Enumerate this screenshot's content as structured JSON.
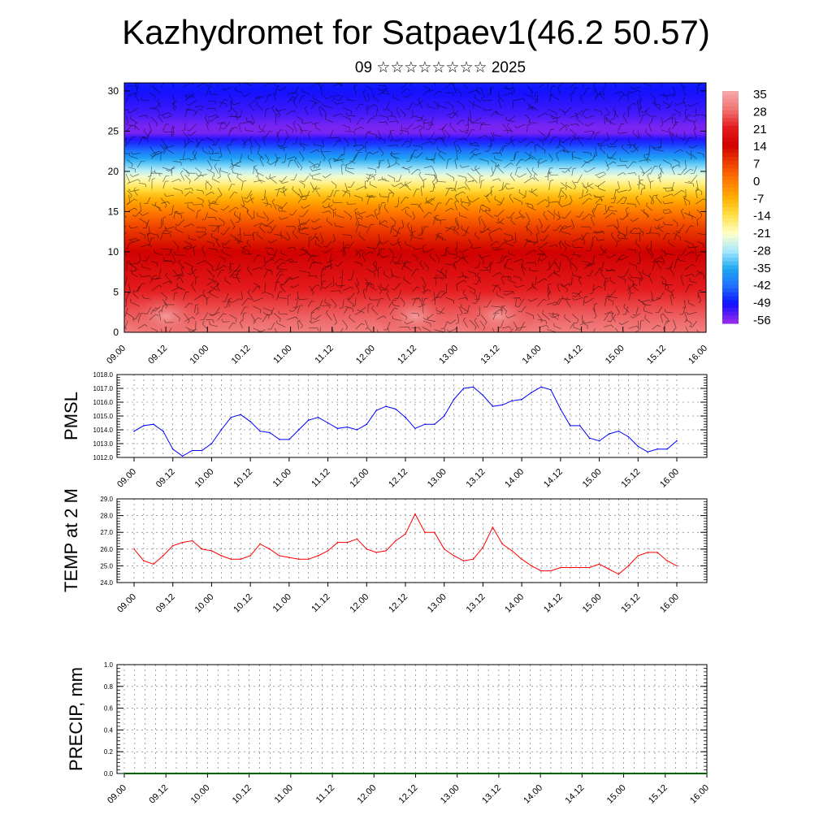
{
  "header": {
    "title": "Kazhydromet for Satpaev1(46.2 50.57)",
    "subtitle": "09 ☆☆☆☆☆☆☆☆ 2025"
  },
  "chart_data": [
    {
      "type": "heatmap",
      "name": "wind-temperature-cross-section",
      "x_ticks": [
        "09.00",
        "09.12",
        "10.00",
        "10.12",
        "11.00",
        "11.12",
        "12.00",
        "12.12",
        "13.00",
        "13.12",
        "14.00",
        "14.12",
        "15.00",
        "15.12",
        "16.00"
      ],
      "y_ticks": [
        "0",
        "5",
        "10",
        "15",
        "20",
        "25",
        "30"
      ],
      "ylim": [
        0,
        31
      ],
      "colorbar_labels": [
        "35",
        "28",
        "21",
        "14",
        "7",
        "0",
        "-7",
        "-14",
        "-21",
        "-28",
        "-35",
        "-42",
        "-49",
        "-56"
      ],
      "colorbar_colors": [
        "#f4a5a5",
        "#f07070",
        "#e41a1c",
        "#d00000",
        "#ee4000",
        "#ff7a00",
        "#ffb000",
        "#ffe24a",
        "#ffffc8",
        "#a8e8ff",
        "#1ea8f0",
        "#2070ff",
        "#1010ff",
        "#9028f0"
      ],
      "profile_by_height": {
        "height": [
          0,
          3,
          6,
          10,
          13,
          15,
          17,
          19,
          21,
          23,
          25,
          27,
          31
        ],
        "temperature": [
          30,
          25,
          20,
          14,
          7,
          0,
          -9,
          -20,
          -32,
          -44,
          -56,
          -52,
          -48
        ]
      },
      "warm_spots": [
        {
          "x": "09.12",
          "y": 2,
          "temperature": 34
        },
        {
          "x": "12.12",
          "y": 2,
          "temperature": 34
        },
        {
          "x": "13.12",
          "y": 2,
          "temperature": 34
        }
      ],
      "grid": false
    },
    {
      "type": "line",
      "ylabel": "PMSL",
      "ylim": [
        1012.0,
        1018.0
      ],
      "y_ticks": [
        "1012.0",
        "1013.0",
        "1014.0",
        "1015.0",
        "1016.0",
        "1017.0",
        "1018.0"
      ],
      "x_ticks": [
        "09.00",
        "09.12",
        "10.00",
        "10.12",
        "11.00",
        "11.12",
        "12.00",
        "12.12",
        "13.00",
        "13.12",
        "14.00",
        "14.12",
        "15.00",
        "15.12",
        "16.00"
      ],
      "series": [
        {
          "color": "#0000ff",
          "values": [
            1013.9,
            1014.3,
            1014.4,
            1013.9,
            1012.6,
            1012.1,
            1012.5,
            1012.5,
            1013.0,
            1014.0,
            1014.9,
            1015.1,
            1014.6,
            1013.9,
            1013.8,
            1013.3,
            1013.3,
            1014.0,
            1014.7,
            1014.9,
            1014.5,
            1014.1,
            1014.2,
            1014.0,
            1014.4,
            1015.4,
            1015.7,
            1015.5,
            1014.9,
            1014.1,
            1014.4,
            1014.4,
            1015.0,
            1016.2,
            1017.0,
            1017.1,
            1016.5,
            1015.7,
            1015.8,
            1016.1,
            1016.2,
            1016.7,
            1017.1,
            1016.9,
            1015.5,
            1014.3,
            1014.3,
            1013.4,
            1013.2,
            1013.7,
            1013.9,
            1013.5,
            1012.8,
            1012.4,
            1012.6,
            1012.6,
            1013.2
          ]
        }
      ],
      "grid": true
    },
    {
      "type": "line",
      "ylabel": "TEMP at 2 M",
      "ylim": [
        24.0,
        29.0
      ],
      "y_ticks": [
        "24.0",
        "25.0",
        "26.0",
        "27.0",
        "28.0",
        "29.0"
      ],
      "x_ticks": [
        "09.00",
        "09.12",
        "10.00",
        "10.12",
        "11.00",
        "11.12",
        "12.00",
        "12.12",
        "13.00",
        "13.12",
        "14.00",
        "14.12",
        "15.00",
        "15.12",
        "16.00"
      ],
      "series": [
        {
          "color": "#ff0000",
          "values": [
            26.0,
            25.3,
            25.1,
            25.6,
            26.2,
            26.4,
            26.5,
            26.0,
            25.9,
            25.6,
            25.4,
            25.4,
            25.6,
            26.3,
            26.0,
            25.6,
            25.5,
            25.4,
            25.4,
            25.6,
            25.9,
            26.4,
            26.4,
            26.6,
            26.0,
            25.8,
            25.9,
            26.5,
            26.9,
            28.1,
            27.0,
            27.0,
            26.0,
            25.6,
            25.3,
            25.4,
            26.1,
            27.3,
            26.3,
            25.9,
            25.4,
            25.0,
            24.7,
            24.7,
            24.9,
            24.9,
            24.9,
            24.9,
            25.1,
            24.8,
            24.5,
            25.0,
            25.6,
            25.8,
            25.8,
            25.3,
            25.0
          ]
        }
      ],
      "grid": true
    },
    {
      "type": "line",
      "ylabel": "PRECIP, mm",
      "ylim": [
        0.0,
        1.0
      ],
      "y_ticks": [
        "0.0",
        "0.2",
        "0.4",
        "0.6",
        "0.8",
        "1.0"
      ],
      "x_ticks": [
        "09.00",
        "09.12",
        "10.00",
        "10.12",
        "11.00",
        "11.12",
        "12.00",
        "12.12",
        "13.00",
        "13.12",
        "14.00",
        "14.12",
        "15.00",
        "15.12",
        "16.00"
      ],
      "series": [
        {
          "color": "#006400",
          "values": [
            0,
            0,
            0,
            0,
            0,
            0,
            0,
            0,
            0,
            0,
            0,
            0,
            0,
            0,
            0,
            0,
            0,
            0,
            0,
            0,
            0,
            0,
            0,
            0,
            0,
            0,
            0,
            0,
            0,
            0,
            0,
            0,
            0,
            0,
            0,
            0,
            0,
            0,
            0,
            0,
            0,
            0,
            0,
            0,
            0,
            0,
            0,
            0,
            0,
            0,
            0,
            0,
            0,
            0,
            0,
            0,
            0
          ]
        }
      ],
      "grid": true
    }
  ]
}
